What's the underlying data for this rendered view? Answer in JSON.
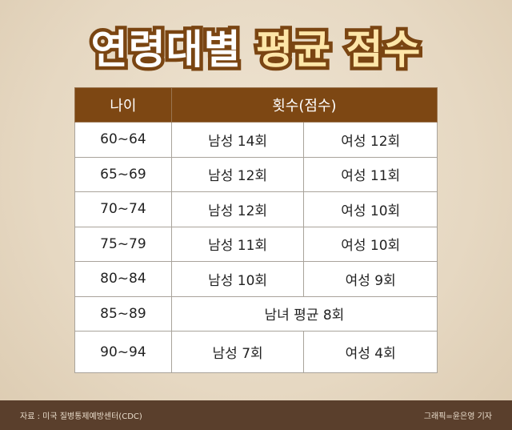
{
  "title": {
    "part1": "연령대별",
    "part2": "평균 점수"
  },
  "table": {
    "headers": [
      "나이",
      "횟수(점수)"
    ],
    "rows": [
      {
        "age": "60~64",
        "male": "남성 14회",
        "female": "여성 12회"
      },
      {
        "age": "65~69",
        "male": "남성 12회",
        "female": "여성 11회"
      },
      {
        "age": "70~74",
        "male": "남성 12회",
        "female": "여성 10회"
      },
      {
        "age": "75~79",
        "male": "남성 11회",
        "female": "여성 10회"
      },
      {
        "age": "80~84",
        "male": "남성 10회",
        "female": "여성 9회"
      },
      {
        "age": "85~89",
        "combined": "남녀 평균 8회"
      },
      {
        "age": "90~94",
        "male": "남성 7회",
        "female": "여성 4회"
      }
    ]
  },
  "footer": {
    "source": "자료 : 미국 질병통제예방센터(CDC)",
    "credit": "그래픽=윤은영 기자"
  },
  "colors": {
    "header": "#7d4713",
    "footer": "#5a3f2c",
    "title_accent": "#fde6a8"
  }
}
